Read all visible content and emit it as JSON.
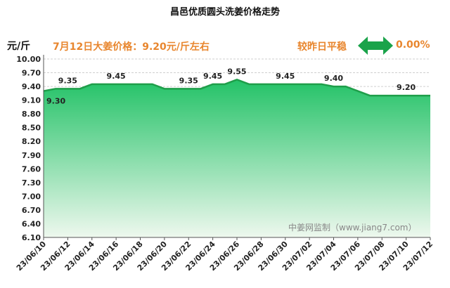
{
  "header": {
    "title": "昌邑优质圆头洗姜价格走势",
    "unit": "元/斤",
    "headline": "7月12日大姜价格：9.20元/斤左右",
    "compare_label": "较昨日平稳",
    "change": "0.00%",
    "arrow_icon": "double-arrow-icon"
  },
  "watermark": "中姜网监制（www.jiang7.com）",
  "colors": {
    "line": "#1f9e4a",
    "fill_top": "#23c267",
    "fill_bottom": "#eef8ee",
    "accent": "#e8862e",
    "arrow": "#1aa34a"
  },
  "chart_data": {
    "type": "area",
    "ylim": [
      6.1,
      10.0
    ],
    "yticks": [
      "10.00",
      "9.70",
      "9.40",
      "9.10",
      "8.80",
      "8.50",
      "8.20",
      "7.90",
      "7.60",
      "7.30",
      "7.00",
      "6.70",
      "6.40",
      "6.10"
    ],
    "xticks": [
      "23/06/10",
      "23/06/12",
      "23/06/14",
      "23/06/16",
      "23/06/18",
      "23/06/20",
      "23/06/22",
      "23/06/24",
      "23/06/26",
      "23/06/28",
      "23/06/30",
      "23/07/02",
      "23/07/04",
      "23/07/06",
      "23/07/08",
      "23/07/10",
      "23/07/12"
    ],
    "x": [
      "23/06/10",
      "23/06/11",
      "23/06/12",
      "23/06/13",
      "23/06/14",
      "23/06/15",
      "23/06/16",
      "23/06/17",
      "23/06/18",
      "23/06/19",
      "23/06/20",
      "23/06/21",
      "23/06/22",
      "23/06/23",
      "23/06/24",
      "23/06/25",
      "23/06/26",
      "23/06/27",
      "23/06/28",
      "23/06/29",
      "23/06/30",
      "23/07/01",
      "23/07/02",
      "23/07/03",
      "23/07/04",
      "23/07/05",
      "23/07/06",
      "23/07/07",
      "23/07/08",
      "23/07/09",
      "23/07/10",
      "23/07/11",
      "23/07/12"
    ],
    "values": [
      9.3,
      9.35,
      9.35,
      9.35,
      9.45,
      9.45,
      9.45,
      9.45,
      9.45,
      9.45,
      9.35,
      9.35,
      9.35,
      9.35,
      9.45,
      9.45,
      9.55,
      9.45,
      9.45,
      9.45,
      9.45,
      9.45,
      9.45,
      9.45,
      9.4,
      9.4,
      9.3,
      9.2,
      9.2,
      9.2,
      9.2,
      9.2,
      9.2
    ],
    "labels": [
      {
        "index": 0,
        "text": "9.30",
        "pos": "below"
      },
      {
        "index": 2,
        "text": "9.35",
        "pos": "above"
      },
      {
        "index": 6,
        "text": "9.45",
        "pos": "above"
      },
      {
        "index": 12,
        "text": "9.35",
        "pos": "above"
      },
      {
        "index": 14,
        "text": "9.45",
        "pos": "above"
      },
      {
        "index": 16,
        "text": "9.55",
        "pos": "above"
      },
      {
        "index": 20,
        "text": "9.45",
        "pos": "above"
      },
      {
        "index": 24,
        "text": "9.40",
        "pos": "above"
      },
      {
        "index": 30,
        "text": "9.20",
        "pos": "above"
      }
    ],
    "grid": true
  }
}
